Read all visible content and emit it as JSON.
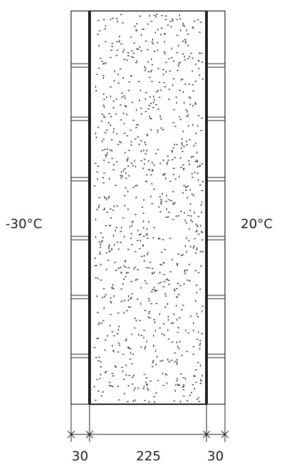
{
  "diagram": {
    "temperatures": {
      "outside": "-30°C",
      "inside": "20°C"
    },
    "dimensions": {
      "left_layer": "30",
      "middle_layer": "225",
      "right_layer": "30"
    },
    "colors": {
      "line": "#1a1a1a",
      "fill": "#ffffff"
    }
  }
}
